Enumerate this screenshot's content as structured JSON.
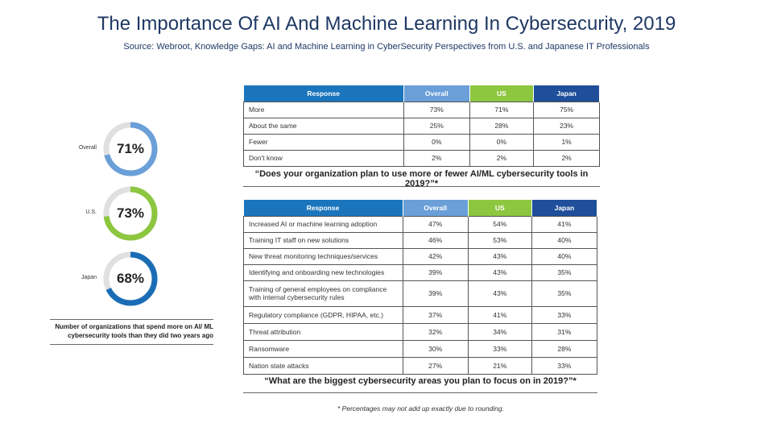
{
  "title": "The Importance Of AI And Machine Learning In Cybersecurity, 2019",
  "source": "Source: Webroot, Knowledge Gaps: AI and Machine Learning in CyberSecurity Perspectives from U.S. and Japanese IT Professionals",
  "colors": {
    "overall": "#6a9fd8",
    "us": "#8dc63f",
    "japan": "#1f4e9a",
    "response": "#1a75bc",
    "japan_donut": "#1a6db5",
    "track": "#e0e0e0"
  },
  "chart_data": [
    {
      "type": "pie",
      "subtype": "donut",
      "title": "Number of organizations that spend more on AI/ ML cybersecurity tools than they did two years ago",
      "categories": [
        "Overall",
        "U.S.",
        "Japan"
      ],
      "values": [
        71,
        73,
        68
      ],
      "value_labels": [
        "71%",
        "73%",
        "68%"
      ]
    },
    {
      "type": "table",
      "title": "“Does your organization plan to use more or fewer AI/ML cybersecurity tools in 2019?”*",
      "columns": [
        "Response",
        "Overall",
        "US",
        "Japan"
      ],
      "rows": [
        [
          "More",
          "73%",
          "71%",
          "75%"
        ],
        [
          "About the same",
          "25%",
          "28%",
          "23%"
        ],
        [
          "Fewer",
          "0%",
          "0%",
          "1%"
        ],
        [
          "Don't know",
          "2%",
          "2%",
          "2%"
        ]
      ]
    },
    {
      "type": "table",
      "title": "“What are the biggest cybersecurity areas you plan to focus on in 2019?”*",
      "columns": [
        "Response",
        "Overall",
        "US",
        "Japan"
      ],
      "rows": [
        [
          "Increased AI or machine learning adoption",
          "47%",
          "54%",
          "41%"
        ],
        [
          "Training IT staff on new solutions",
          "46%",
          "53%",
          "40%"
        ],
        [
          "New threat monitoring techniques/services",
          "42%",
          "43%",
          "40%"
        ],
        [
          "Identifying and onboarding new technologies",
          "39%",
          "43%",
          "35%"
        ],
        [
          "Training of general employees on compliance with internal cybersecurity rules",
          "39%",
          "43%",
          "35%"
        ],
        [
          "Regulatory compliance (GDPR, HIPAA, etc.)",
          "37%",
          "41%",
          "33%"
        ],
        [
          "Threat attribution",
          "32%",
          "34%",
          "31%"
        ],
        [
          "Ransomware",
          "30%",
          "33%",
          "28%"
        ],
        [
          "Nation state attacks",
          "27%",
          "21%",
          "33%"
        ]
      ]
    }
  ],
  "footnote": "* Percentages may not add up exactly due to rounding."
}
